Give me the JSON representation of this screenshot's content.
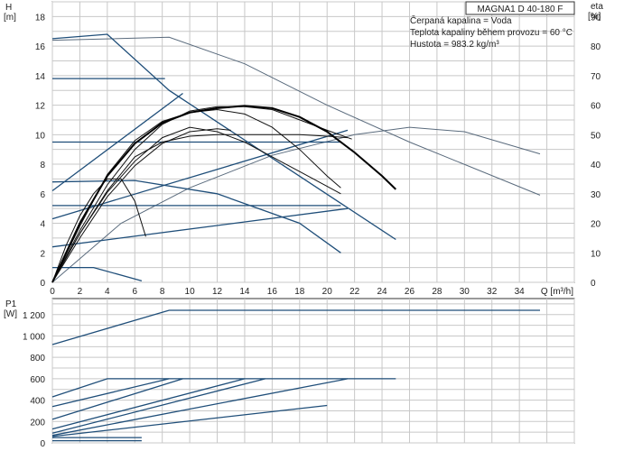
{
  "chart_data": {
    "type": "line",
    "model": "MAGNA1 D 40-180 F",
    "info": [
      "Čerpaná kapalina = Voda",
      "Teplota kapaliny během provozu = 60 °C",
      "Hustota = 983.2 kg/m³"
    ],
    "axes": {
      "x": {
        "label": "Q [m³/h]",
        "min": 0,
        "max": 38,
        "ticks": [
          0,
          2,
          4,
          6,
          8,
          10,
          12,
          14,
          16,
          18,
          20,
          22,
          24,
          26,
          28,
          30,
          32,
          34
        ]
      },
      "h": {
        "label_top": "H",
        "label_unit": "[m]",
        "min": 0,
        "max": 19,
        "ticks": [
          0,
          2,
          4,
          6,
          8,
          10,
          12,
          14,
          16,
          18
        ]
      },
      "eta": {
        "label_top": "eta",
        "label_unit": "[%]",
        "min": 0,
        "max": 95,
        "ticks": [
          0,
          10,
          20,
          30,
          40,
          50,
          60,
          70,
          80,
          90
        ]
      },
      "p": {
        "label_top": "P1",
        "label_unit": "[W]",
        "min": 0,
        "max": 1350,
        "ticks": [
          0,
          200,
          400,
          600,
          800,
          1000,
          1200
        ],
        "tick_labels": [
          "0",
          "200",
          "400",
          "600",
          "800",
          "1 000",
          "1 200"
        ]
      }
    },
    "head_curves_blue": [
      {
        "points": [
          [
            0,
            16.5
          ],
          [
            4,
            16.8
          ],
          [
            8.5,
            13.0
          ],
          [
            25,
            2.9
          ]
        ]
      },
      {
        "points": [
          [
            0,
            13.8
          ],
          [
            8.2,
            13.8
          ]
        ]
      },
      {
        "points": [
          [
            0,
            9.5
          ],
          [
            21,
            9.5
          ]
        ]
      },
      {
        "points": [
          [
            0,
            5.2
          ],
          [
            21,
            5.2
          ]
        ]
      },
      {
        "points": [
          [
            0,
            6.8
          ],
          [
            6,
            6.9
          ],
          [
            12,
            6.0
          ],
          [
            18,
            4.0
          ],
          [
            21,
            2.0
          ]
        ]
      },
      {
        "points": [
          [
            0,
            1.0
          ],
          [
            3,
            1.0
          ],
          [
            6.5,
            0.1
          ]
        ]
      },
      {
        "points": [
          [
            0,
            6.2
          ],
          [
            9.5,
            12.8
          ]
        ]
      },
      {
        "points": [
          [
            0,
            4.3
          ],
          [
            21.5,
            10.3
          ]
        ]
      },
      {
        "points": [
          [
            0,
            2.4
          ],
          [
            21.5,
            5.0
          ]
        ]
      }
    ],
    "head_curve_gray": {
      "points": [
        [
          0,
          16.4
        ],
        [
          8.5,
          16.6
        ],
        [
          14,
          14.8
        ],
        [
          20,
          12.0
        ],
        [
          26,
          9.5
        ],
        [
          35.5,
          5.9
        ]
      ]
    },
    "efficiency_gray": {
      "points": [
        [
          0,
          0
        ],
        [
          5,
          20
        ],
        [
          10,
          32
        ],
        [
          16,
          43
        ],
        [
          22,
          50
        ],
        [
          26,
          52.5
        ],
        [
          30,
          51
        ],
        [
          35.5,
          43.5
        ]
      ]
    },
    "system_curves_black": [
      {
        "points": [
          [
            0,
            0
          ],
          [
            2,
            3.5
          ],
          [
            4,
            6.6
          ],
          [
            6,
            9.0
          ],
          [
            8,
            10.7
          ],
          [
            10,
            11.6
          ],
          [
            12,
            11.9
          ],
          [
            14,
            11.9
          ],
          [
            16,
            11.7
          ],
          [
            18,
            11.0
          ],
          [
            20,
            10.3
          ],
          [
            21.8,
            9.7
          ]
        ]
      },
      {
        "points": [
          [
            0,
            0
          ],
          [
            2,
            3.8
          ],
          [
            4,
            7.3
          ],
          [
            6,
            9.6
          ],
          [
            8,
            10.9
          ],
          [
            10,
            11.5
          ],
          [
            12,
            11.7
          ],
          [
            14,
            11.4
          ],
          [
            16,
            10.5
          ],
          [
            18,
            9.0
          ],
          [
            20,
            7.2
          ],
          [
            21,
            6.4
          ]
        ]
      },
      {
        "points": [
          [
            0,
            0
          ],
          [
            2,
            3.3
          ],
          [
            4,
            6.2
          ],
          [
            6,
            8.5
          ],
          [
            8,
            9.5
          ],
          [
            10,
            9.9
          ],
          [
            12,
            10.0
          ],
          [
            14,
            10.0
          ],
          [
            16,
            10.0
          ],
          [
            18,
            10.0
          ],
          [
            20,
            9.9
          ],
          [
            21.5,
            9.8
          ]
        ]
      },
      {
        "points": [
          [
            0,
            0
          ],
          [
            1,
            2.5
          ],
          [
            2,
            4.5
          ],
          [
            3,
            6.0
          ],
          [
            4,
            7.0
          ],
          [
            5,
            7.0
          ],
          [
            6,
            5.5
          ],
          [
            6.8,
            3.1
          ]
        ]
      },
      {
        "points": [
          [
            0,
            0
          ],
          [
            2,
            3.3
          ],
          [
            4,
            6.1
          ],
          [
            6,
            8.2
          ],
          [
            8,
            9.8
          ],
          [
            10,
            10.5
          ],
          [
            12,
            10.2
          ],
          [
            14,
            9.5
          ],
          [
            16,
            8.5
          ],
          [
            18,
            7.5
          ],
          [
            20,
            6.5
          ],
          [
            21,
            6.0
          ]
        ]
      },
      {
        "points": [
          [
            0,
            0
          ],
          [
            2,
            3.0
          ],
          [
            4,
            5.8
          ],
          [
            6,
            7.9
          ],
          [
            8,
            9.4
          ],
          [
            10,
            10.2
          ],
          [
            12,
            10.4
          ],
          [
            13,
            10.3
          ]
        ]
      }
    ],
    "system_curve_bold": {
      "points": [
        [
          0,
          0
        ],
        [
          2,
          4.0
        ],
        [
          4,
          7.2
        ],
        [
          6,
          9.4
        ],
        [
          8,
          10.8
        ],
        [
          10,
          11.5
        ],
        [
          12,
          11.8
        ],
        [
          14,
          11.95
        ],
        [
          16,
          11.8
        ],
        [
          18,
          11.2
        ],
        [
          20,
          10.2
        ],
        [
          22,
          8.8
        ],
        [
          24,
          7.2
        ],
        [
          25,
          6.3
        ]
      ]
    },
    "power_curves_blue": [
      {
        "points": [
          [
            0,
            920
          ],
          [
            8.5,
            1240
          ],
          [
            35.5,
            1240
          ]
        ]
      },
      {
        "points": [
          [
            0,
            430
          ],
          [
            4,
            600
          ],
          [
            25,
            600
          ]
        ]
      },
      {
        "points": [
          [
            0,
            340
          ],
          [
            8.5,
            600
          ]
        ]
      },
      {
        "points": [
          [
            0,
            220
          ],
          [
            9.5,
            600
          ]
        ]
      },
      {
        "points": [
          [
            0,
            130
          ],
          [
            14,
            600
          ]
        ]
      },
      {
        "points": [
          [
            0,
            90
          ],
          [
            15.5,
            600
          ]
        ]
      },
      {
        "points": [
          [
            0,
            70
          ],
          [
            21.5,
            600
          ]
        ]
      },
      {
        "points": [
          [
            0,
            60
          ],
          [
            20,
            350
          ]
        ]
      },
      {
        "points": [
          [
            0,
            50
          ],
          [
            6.5,
            50
          ]
        ]
      },
      {
        "points": [
          [
            0,
            20
          ],
          [
            6.5,
            20
          ]
        ]
      }
    ]
  }
}
